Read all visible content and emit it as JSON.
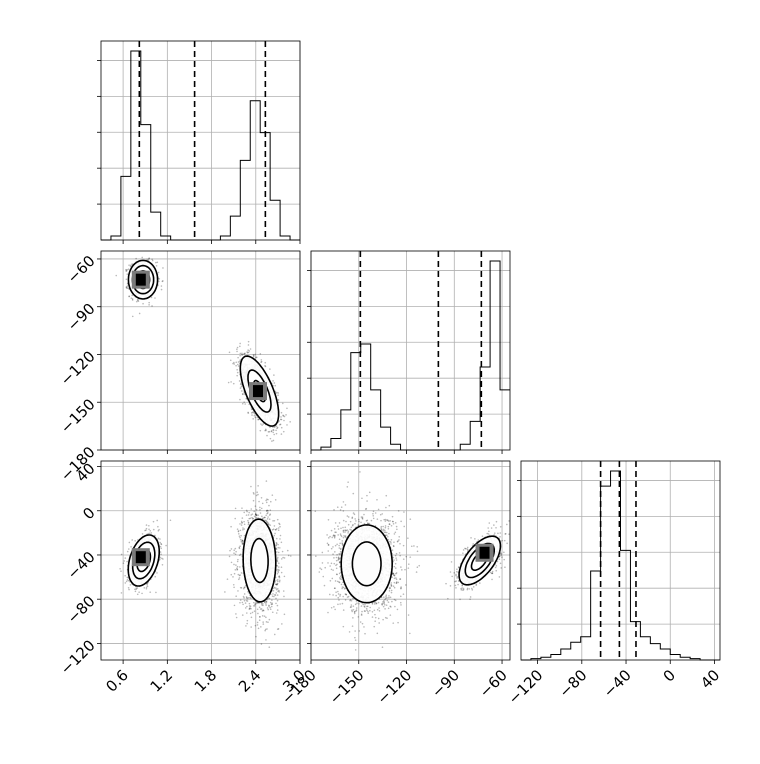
{
  "chart_data": {
    "type": "corner",
    "grid": true,
    "parameters": [
      {
        "index": 0,
        "range": [
          0.3,
          3.0
        ],
        "ticks": [
          0.6,
          1.2,
          1.8,
          2.4,
          3.0
        ],
        "tick_labels": [
          "0.6",
          "1.2",
          "1.8",
          "2.4",
          "3.0"
        ]
      },
      {
        "index": 1,
        "range": [
          -180,
          -55
        ],
        "ticks": [
          -180,
          -150,
          -120,
          -90,
          -60
        ],
        "tick_labels": [
          "−180",
          "−150",
          "−120",
          "−90",
          "−60"
        ]
      },
      {
        "index": 2,
        "range": [
          -135,
          45
        ],
        "ticks": [
          -120,
          -80,
          -40,
          0,
          40
        ],
        "tick_labels": [
          "−120",
          "−80",
          "−40",
          "0",
          "40"
        ]
      }
    ],
    "histograms": [
      {
        "param": 0,
        "bin_edges": [
          0.3,
          0.435,
          0.57,
          0.705,
          0.84,
          0.975,
          1.11,
          1.245,
          1.38,
          1.515,
          1.65,
          1.785,
          1.92,
          2.055,
          2.19,
          2.325,
          2.46,
          2.595,
          2.73,
          2.865,
          3.0
        ],
        "counts": [
          0,
          2,
          32,
          95,
          58,
          14,
          2,
          0,
          0,
          0,
          0,
          0,
          2,
          12,
          40,
          70,
          54,
          20,
          2,
          0
        ],
        "quantiles": [
          0.82,
          1.57,
          2.53
        ]
      },
      {
        "param": 1,
        "bin_edges": [
          -180,
          -173.75,
          -167.5,
          -161.25,
          -155,
          -148.75,
          -142.5,
          -136.25,
          -130,
          -123.75,
          -117.5,
          -111.25,
          -105,
          -98.75,
          -92.5,
          -86.25,
          -80,
          -73.75,
          -67.5,
          -61.25,
          -55
        ],
        "counts": [
          0,
          2,
          8,
          28,
          68,
          74,
          42,
          16,
          4,
          0,
          0,
          0,
          0,
          0,
          0,
          4,
          20,
          58,
          132,
          42
        ],
        "quantiles": [
          -149.0,
          -100.0,
          -73.0
        ]
      },
      {
        "param": 2,
        "bin_edges": [
          -135,
          -126,
          -117,
          -108,
          -99,
          -90,
          -81,
          -72,
          -63,
          -54,
          -45,
          -36,
          -27,
          -18,
          -9,
          0,
          9,
          18,
          27,
          36,
          45
        ],
        "counts": [
          0,
          1,
          2,
          4,
          8,
          13,
          17,
          65,
          127,
          138,
          80,
          28,
          17,
          12,
          8,
          4,
          2,
          1,
          0,
          0
        ],
        "quantiles": [
          -63.0,
          -46.0,
          -31.0
        ]
      }
    ],
    "densities": [
      {
        "x_param": 0,
        "y_param": 1,
        "clusters": [
          {
            "cx": 0.87,
            "cy": -73,
            "sx": 0.09,
            "sy": 5.5,
            "rho": 0.0,
            "n": 900
          },
          {
            "cx": 2.45,
            "cy": -143,
            "sx": 0.13,
            "sy": 11,
            "rho": -0.65,
            "n": 1300
          }
        ],
        "contours": [
          {
            "cluster": 0,
            "levels": [
              1.0,
              1.6,
              2.2
            ]
          },
          {
            "cluster": 1,
            "levels": [
              0.6,
              1.2,
              2.0
            ]
          }
        ],
        "peak_cells": [
          {
            "x": 0.84,
            "y": -73
          },
          {
            "x": 2.43,
            "y": -143
          }
        ]
      },
      {
        "x_param": 0,
        "y_param": 2,
        "clusters": [
          {
            "cx": 0.88,
            "cy": -45,
            "sx": 0.1,
            "sy": 11,
            "rho": 0.35,
            "n": 900
          },
          {
            "cx": 2.45,
            "cy": -45,
            "sx": 0.13,
            "sy": 22,
            "rho": -0.05,
            "n": 1700
          }
        ],
        "contours": [
          {
            "cluster": 0,
            "levels": [
              0.9,
              1.5,
              2.1
            ]
          },
          {
            "cluster": 1,
            "levels": [
              0.9,
              1.7
            ]
          }
        ],
        "peak_cells": [
          {
            "x": 0.84,
            "y": -42
          }
        ]
      },
      {
        "x_param": 1,
        "y_param": 2,
        "clusters": [
          {
            "cx": -145,
            "cy": -48,
            "sx": 10,
            "sy": 22,
            "rho": 0.0,
            "n": 1800
          },
          {
            "cx": -74,
            "cy": -45,
            "sx": 6.5,
            "sy": 11,
            "rho": 0.6,
            "n": 1000
          }
        ],
        "contours": [
          {
            "cluster": 0,
            "levels": [
              0.9,
              1.6
            ]
          },
          {
            "cluster": 1,
            "levels": [
              0.8,
              1.4,
              2.0
            ]
          }
        ],
        "peak_cells": [
          {
            "x": -71,
            "y": -38
          }
        ]
      }
    ]
  }
}
